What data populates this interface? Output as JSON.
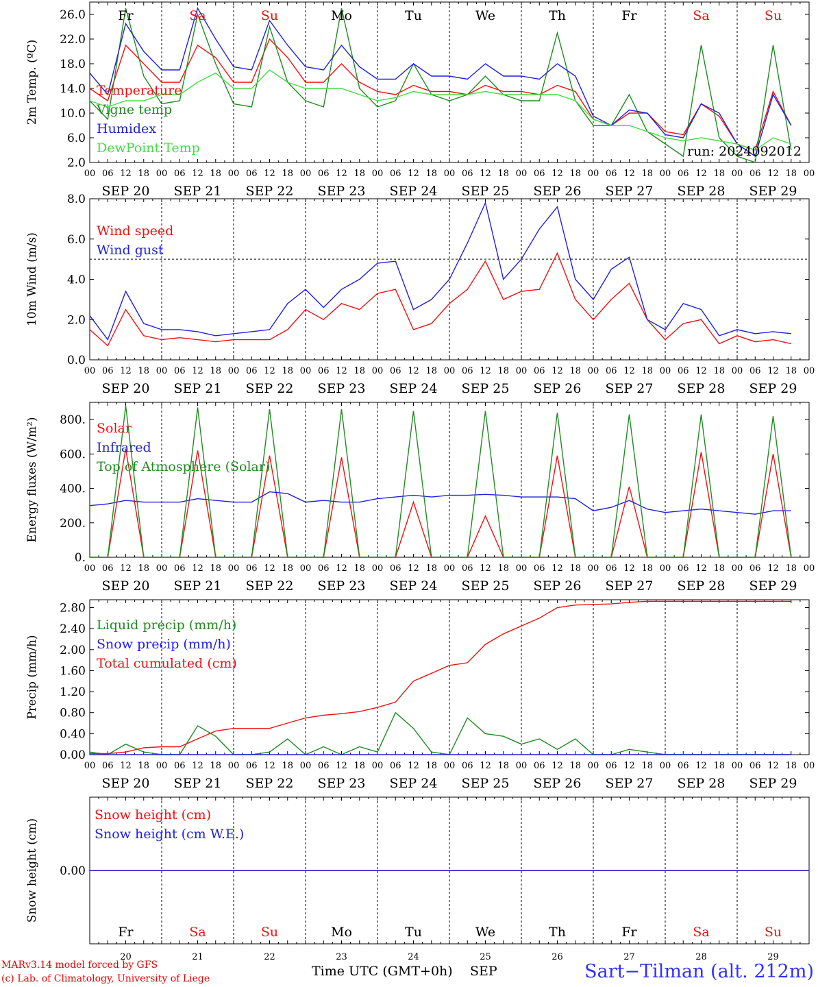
{
  "chart_data": [
    {
      "type": "line",
      "ylabel": "2m Temp. (ºC)",
      "ylim": [
        2,
        28
      ],
      "yticks": [
        "2.0",
        "6.0",
        "10.0",
        "14.0",
        "18.0",
        "22.0",
        "26.0"
      ],
      "run_label": "run: 2024092012",
      "legend_placement": "left",
      "x_hours": [
        0,
        6,
        12,
        18,
        24,
        30,
        36,
        42,
        48,
        54,
        60,
        66,
        72,
        78,
        84,
        90,
        96,
        102,
        108,
        114,
        120,
        126,
        132,
        138,
        144,
        150,
        156,
        162,
        168,
        174,
        180,
        186,
        192,
        198,
        204,
        210,
        216,
        222,
        228,
        234
      ],
      "series": [
        {
          "name": "Temperature",
          "color": "#ee1111",
          "values": [
            14,
            12,
            21,
            18,
            15,
            15,
            21,
            19,
            15,
            15,
            22,
            19,
            15,
            15,
            18,
            15,
            13.5,
            13,
            14.5,
            13.5,
            13.5,
            13,
            14.5,
            13.5,
            13.5,
            13,
            14.5,
            13.5,
            9,
            8,
            10,
            10,
            7,
            6.5,
            11.5,
            9.5,
            5,
            4,
            13.5,
            8
          ]
        },
        {
          "name": "Vigne temp",
          "color": "#1e8c1e",
          "values": [
            12,
            9,
            27,
            16,
            11.5,
            12,
            26,
            18,
            11.5,
            11,
            24,
            15,
            12,
            11,
            27,
            14,
            11,
            12,
            18,
            13,
            12,
            13,
            16,
            13,
            12,
            12,
            23,
            12,
            8,
            8,
            13,
            7,
            5,
            3,
            21,
            6,
            3,
            2,
            21,
            4
          ]
        },
        {
          "name": "Humidex",
          "color": "#2020dd",
          "values": [
            16.5,
            13,
            24.5,
            20,
            17,
            17,
            27,
            22,
            17.5,
            17,
            25,
            21,
            17.5,
            17,
            21,
            17.5,
            15.5,
            15.5,
            18,
            16,
            16,
            15.5,
            18,
            16,
            16,
            15.5,
            18,
            16,
            9.5,
            8,
            10.5,
            10,
            6.5,
            6,
            11.5,
            10,
            5,
            3,
            13,
            8
          ]
        },
        {
          "name": "DewPoint Temp",
          "color": "#44dd44",
          "values": [
            12,
            11,
            12,
            12,
            13,
            13,
            15,
            16.5,
            14,
            14,
            17,
            15,
            14,
            14,
            14,
            13,
            12,
            12.5,
            13.5,
            13,
            13,
            13,
            13.5,
            13,
            13,
            13,
            13,
            12,
            9,
            8,
            8,
            7,
            6,
            5.5,
            6,
            5.5,
            5,
            4,
            6,
            5
          ]
        }
      ]
    },
    {
      "type": "line",
      "ylabel": "10m Wind (m/s)",
      "ylim": [
        0,
        8
      ],
      "yticks": [
        "0.0",
        "2.0",
        "4.0",
        "6.0",
        "8.0"
      ],
      "threshold": 5,
      "legend_placement": "left",
      "x_hours": [
        0,
        6,
        12,
        18,
        24,
        30,
        36,
        42,
        48,
        54,
        60,
        66,
        72,
        78,
        84,
        90,
        96,
        102,
        108,
        114,
        120,
        126,
        132,
        138,
        144,
        150,
        156,
        162,
        168,
        174,
        180,
        186,
        192,
        198,
        204,
        210,
        216,
        222,
        228,
        234
      ],
      "series": [
        {
          "name": "Wind speed",
          "color": "#ee1111",
          "values": [
            1.5,
            0.7,
            2.5,
            1.2,
            1.0,
            1.1,
            1.0,
            0.9,
            1.0,
            1.0,
            1.0,
            1.5,
            2.5,
            2.0,
            2.8,
            2.5,
            3.3,
            3.5,
            1.5,
            1.8,
            2.8,
            3.5,
            4.9,
            3.0,
            3.4,
            3.5,
            5.3,
            3.0,
            2.0,
            3.0,
            3.8,
            2.0,
            1.0,
            1.8,
            2.0,
            0.8,
            1.2,
            0.9,
            1.0,
            0.8
          ]
        },
        {
          "name": "Wind gust",
          "color": "#2020dd",
          "values": [
            2.2,
            1.0,
            3.4,
            1.8,
            1.5,
            1.5,
            1.4,
            1.2,
            1.3,
            1.4,
            1.5,
            2.8,
            3.5,
            2.6,
            3.5,
            4.0,
            4.8,
            4.9,
            2.5,
            3.0,
            4.0,
            5.8,
            7.8,
            4.0,
            5.0,
            6.5,
            7.6,
            4.0,
            3.0,
            4.5,
            5.1,
            2.0,
            1.5,
            2.8,
            2.5,
            1.2,
            1.5,
            1.3,
            1.4,
            1.3
          ]
        }
      ]
    },
    {
      "type": "line",
      "ylabel": "Energy fluxes (W/m²)",
      "ylim": [
        0,
        900
      ],
      "yticks": [
        "0.",
        "200.",
        "400.",
        "600.",
        "800."
      ],
      "legend_placement": "left",
      "x_hours": [
        0,
        6,
        12,
        18,
        24,
        30,
        36,
        42,
        48,
        54,
        60,
        66,
        72,
        78,
        84,
        90,
        96,
        102,
        108,
        114,
        120,
        126,
        132,
        138,
        144,
        150,
        156,
        162,
        168,
        174,
        180,
        186,
        192,
        198,
        204,
        210,
        216,
        222,
        228,
        234
      ],
      "series": [
        {
          "name": "Solar",
          "color": "#ee1111",
          "values": [
            0,
            0,
            630,
            0,
            0,
            0,
            620,
            0,
            0,
            0,
            590,
            0,
            0,
            0,
            580,
            0,
            0,
            0,
            320,
            0,
            0,
            0,
            240,
            0,
            0,
            0,
            590,
            0,
            0,
            0,
            410,
            0,
            0,
            0,
            610,
            0,
            0,
            0,
            600,
            0
          ]
        },
        {
          "name": "Infrared",
          "color": "#2020dd",
          "values": [
            300,
            310,
            330,
            320,
            320,
            320,
            340,
            330,
            320,
            320,
            380,
            370,
            320,
            330,
            320,
            320,
            340,
            350,
            360,
            350,
            360,
            360,
            365,
            360,
            350,
            350,
            350,
            340,
            270,
            290,
            330,
            280,
            260,
            270,
            280,
            270,
            260,
            250,
            270,
            270
          ]
        },
        {
          "name": "Top of Atmosphere (Solar)",
          "color": "#1e8c1e",
          "values": [
            0,
            0,
            880,
            0,
            0,
            0,
            870,
            0,
            0,
            0,
            860,
            0,
            0,
            0,
            860,
            0,
            0,
            0,
            850,
            0,
            0,
            0,
            850,
            0,
            0,
            0,
            840,
            0,
            0,
            0,
            830,
            0,
            0,
            0,
            830,
            0,
            0,
            0,
            820,
            0
          ]
        }
      ]
    },
    {
      "type": "line",
      "ylabel": "Precip (mm/h)",
      "ylim": [
        0,
        2.95
      ],
      "yticks": [
        "0.00",
        "0.40",
        "0.80",
        "1.20",
        "1.60",
        "2.00",
        "2.40",
        "2.80"
      ],
      "legend_placement": "left",
      "x_hours": [
        0,
        6,
        12,
        18,
        24,
        30,
        36,
        42,
        48,
        54,
        60,
        66,
        72,
        78,
        84,
        90,
        96,
        102,
        108,
        114,
        120,
        126,
        132,
        138,
        144,
        150,
        156,
        162,
        168,
        174,
        180,
        186,
        192,
        198,
        204,
        210,
        216,
        222,
        228,
        234
      ],
      "series": [
        {
          "name": "Liquid precip (mm/h)",
          "color": "#1e8c1e",
          "values": [
            0.05,
            0,
            0.2,
            0.05,
            0,
            0,
            0.55,
            0.35,
            0,
            0,
            0.05,
            0.3,
            0,
            0.15,
            0,
            0.15,
            0.05,
            0.8,
            0.5,
            0.05,
            0,
            0.7,
            0.4,
            0.35,
            0.2,
            0.3,
            0.1,
            0.3,
            0,
            0,
            0.1,
            0.05,
            0,
            0,
            0,
            0,
            0,
            0,
            0,
            0
          ]
        },
        {
          "name": "Snow precip (mm/h)",
          "color": "#2020dd",
          "values": [
            0,
            0,
            0,
            0,
            0,
            0,
            0,
            0,
            0,
            0,
            0,
            0,
            0,
            0,
            0,
            0,
            0,
            0,
            0,
            0,
            0,
            0,
            0,
            0,
            0,
            0,
            0,
            0,
            0,
            0,
            0,
            0,
            0,
            0,
            0,
            0,
            0,
            0,
            0,
            0
          ]
        },
        {
          "name": "Total cumulated (cm)",
          "color": "#ee1111",
          "values": [
            0.02,
            0.02,
            0.05,
            0.13,
            0.15,
            0.15,
            0.3,
            0.45,
            0.5,
            0.5,
            0.5,
            0.6,
            0.7,
            0.75,
            0.78,
            0.82,
            0.9,
            1.0,
            1.4,
            1.55,
            1.7,
            1.75,
            2.1,
            2.3,
            2.45,
            2.6,
            2.8,
            2.85,
            2.86,
            2.87,
            2.9,
            2.92,
            2.92,
            2.92,
            2.92,
            2.92,
            2.92,
            2.92,
            2.92,
            2.92
          ]
        }
      ]
    },
    {
      "type": "line",
      "ylabel": "Snow height (cm)",
      "ylim": [
        -1,
        1
      ],
      "yticks": [
        "0.00"
      ],
      "legend_placement": "left",
      "series": [
        {
          "name": "Snow height (cm)",
          "color": "#ee1111",
          "values": [
            0
          ]
        },
        {
          "name": "Snow height (cm W.E.)",
          "color": "#2020dd",
          "values": [
            0
          ]
        }
      ]
    }
  ],
  "x_axis": {
    "hour_ticks": [
      "00",
      "06",
      "12",
      "18"
    ],
    "end_tick": "00",
    "dates": [
      "SEP 20",
      "SEP 21",
      "SEP 22",
      "SEP 23",
      "SEP 24",
      "SEP 25",
      "SEP 26",
      "SEP 27",
      "SEP 28",
      "SEP 29"
    ],
    "days": [
      {
        "abbr": "Fr",
        "num": "20",
        "weekend": false
      },
      {
        "abbr": "Sa",
        "num": "21",
        "weekend": true
      },
      {
        "abbr": "Su",
        "num": "22",
        "weekend": true
      },
      {
        "abbr": "Mo",
        "num": "23",
        "weekend": false
      },
      {
        "abbr": "Tu",
        "num": "24",
        "weekend": false
      },
      {
        "abbr": "We",
        "num": "25",
        "weekend": false
      },
      {
        "abbr": "Th",
        "num": "26",
        "weekend": false
      },
      {
        "abbr": "Fr",
        "num": "27",
        "weekend": false
      },
      {
        "abbr": "Sa",
        "num": "28",
        "weekend": true
      },
      {
        "abbr": "Su",
        "num": "29",
        "weekend": true
      }
    ],
    "xlabel": "Time UTC (GMT+0h)",
    "month": "SEP"
  },
  "colors": {
    "weekday": "#000000",
    "weekend": "#ee1111"
  },
  "footer": {
    "credit_line1": "MARv3.14 model forced by GFS",
    "credit_line2": "(c) Lab. of Climatology, University of Liege",
    "station": "Sart−Tilman (alt. 212m)"
  }
}
